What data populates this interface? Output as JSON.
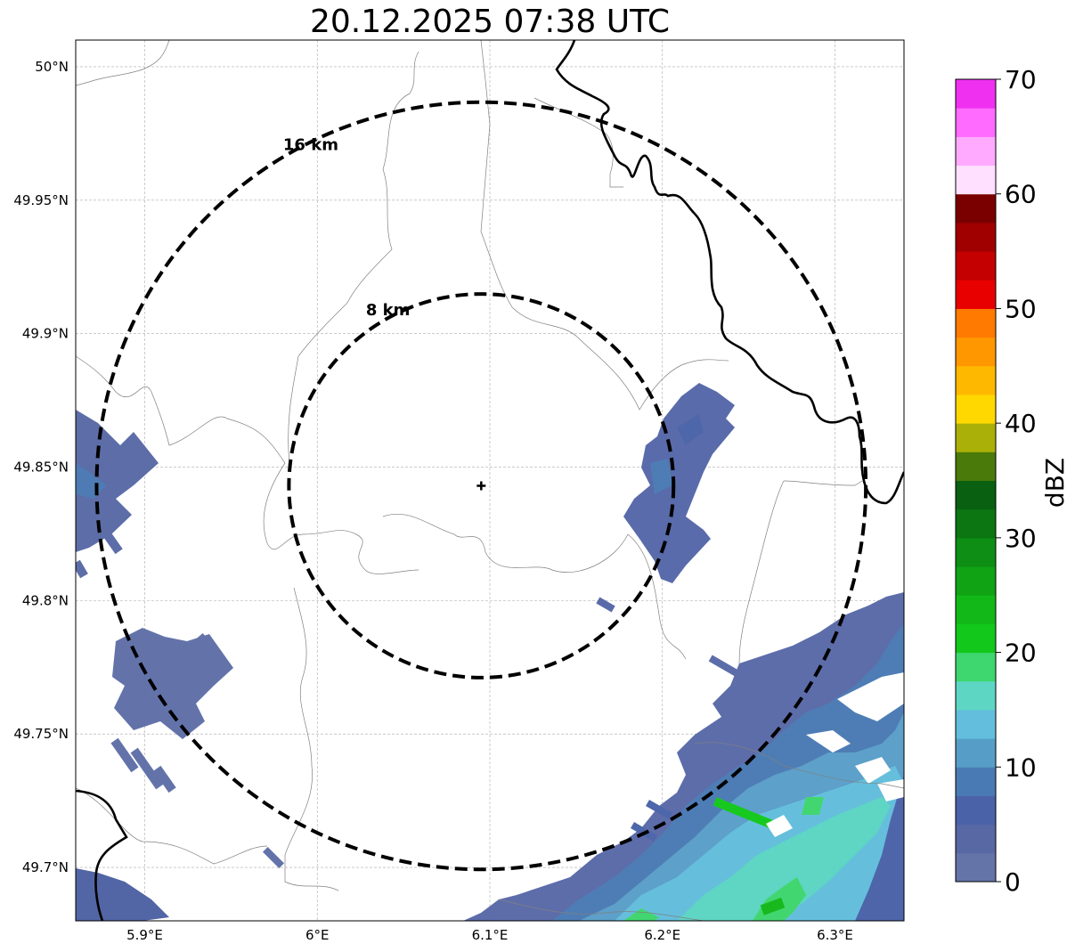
{
  "title": "20.12.2025 07:38 UTC",
  "map": {
    "extent": {
      "lon": [
        5.86,
        6.34
      ],
      "lat": [
        49.68,
        50.01
      ]
    },
    "center": {
      "lon": 6.095,
      "lat": 49.843
    },
    "x_ticks": [
      {
        "value": 5.9,
        "label": "5.9°E"
      },
      {
        "value": 6.0,
        "label": "6°E"
      },
      {
        "value": 6.1,
        "label": "6.1°E"
      },
      {
        "value": 6.2,
        "label": "6.2°E"
      },
      {
        "value": 6.3,
        "label": "6.3°E"
      }
    ],
    "y_ticks": [
      {
        "value": 50.0,
        "label": "50°N"
      },
      {
        "value": 49.95,
        "label": "49.95°N"
      },
      {
        "value": 49.9,
        "label": "49.9°N"
      },
      {
        "value": 49.85,
        "label": "49.85°N"
      },
      {
        "value": 49.8,
        "label": "49.8°N"
      },
      {
        "value": 49.75,
        "label": "49.75°N"
      },
      {
        "value": 49.7,
        "label": "49.7°N"
      }
    ],
    "range_rings": [
      {
        "radius_km": 8,
        "label": "8 km"
      },
      {
        "radius_km": 16,
        "label": "16 km"
      }
    ],
    "grid": true
  },
  "colorbar": {
    "label": "dBZ",
    "range": [
      0,
      70
    ],
    "ticks": [
      {
        "value": 0,
        "label": "0"
      },
      {
        "value": 10,
        "label": "10"
      },
      {
        "value": 20,
        "label": "20"
      },
      {
        "value": 30,
        "label": "30"
      },
      {
        "value": 40,
        "label": "40"
      },
      {
        "value": 50,
        "label": "50"
      },
      {
        "value": 60,
        "label": "60"
      },
      {
        "value": 70,
        "label": "70"
      }
    ],
    "colors": [
      "#6474a8",
      "#5868a4",
      "#4a62a8",
      "#4a7ab4",
      "#569ec8",
      "#62bedc",
      "#5ed6c4",
      "#3ed66e",
      "#12c81a",
      "#12b818",
      "#10a414",
      "#0e8e14",
      "#0c7612",
      "#086010",
      "#4a7a0a",
      "#aab008",
      "#ffd800",
      "#ffb800",
      "#ff9800",
      "#ff7a00",
      "#e80000",
      "#c40000",
      "#a00000",
      "#7a0000",
      "#ffe0ff",
      "#ffaaff",
      "#ff6aff",
      "#f030f0"
    ]
  }
}
